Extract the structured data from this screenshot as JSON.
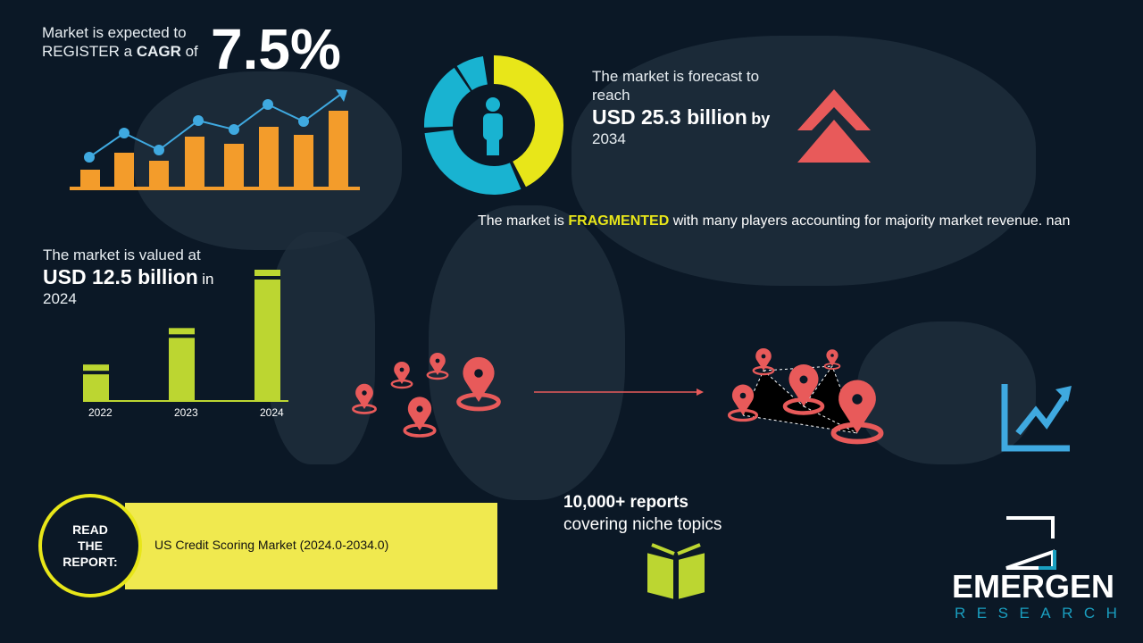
{
  "cagr": {
    "line1": "Market is expected to",
    "line2_pre": "REGISTER a ",
    "line2_bold": "CAGR",
    "line2_post": " of",
    "value": "7.5%"
  },
  "forecast": {
    "line1": "The market is forecast to",
    "line2": "reach",
    "value": "USD 25.3 billion",
    "by": "by",
    "year": "2034"
  },
  "fragmented": {
    "pre": "The market is ",
    "highlight": "FRAGMENTED",
    "post": " with many players accounting for majority market revenue. nan"
  },
  "valued": {
    "line1": "The market is valued at",
    "value": "USD 12.5 billion",
    "in": "in",
    "year": "2024"
  },
  "chart_data": {
    "type": "bar",
    "categories": [
      "2022",
      "2023",
      "2024"
    ],
    "values": [
      1,
      2,
      3.6
    ]
  },
  "report": {
    "circle": [
      "READ",
      "THE",
      "REPORT:"
    ],
    "title": "US Credit Scoring Market (2024.0-2034.0)"
  },
  "reports": {
    "line1": "10,000+ reports",
    "line2": "covering niche topics"
  },
  "logo": {
    "name": "EMERGEN",
    "sub": "RESEARCH"
  },
  "colors": {
    "bg": "#0b1826",
    "orange": "#f39c2b",
    "blue": "#3fa9e0",
    "yellow": "#e8e619",
    "cyan": "#19b3d1",
    "red": "#e85a5a",
    "green": "#bcd631",
    "report_yellow": "#f0e94f"
  }
}
